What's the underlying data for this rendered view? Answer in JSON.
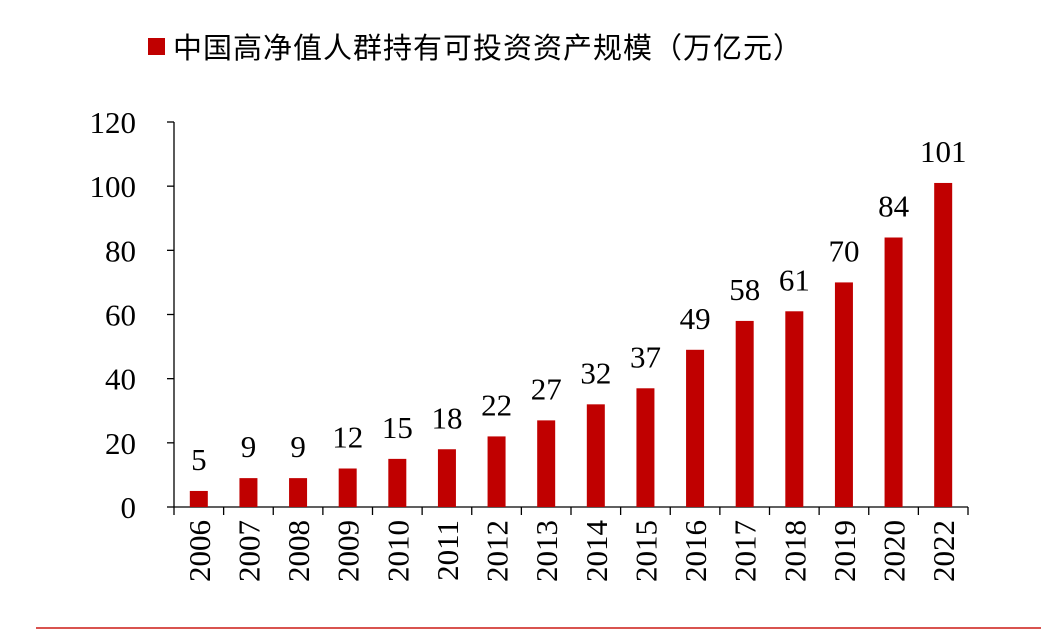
{
  "chart_data": {
    "type": "bar",
    "series": [
      {
        "name": "中国高净值人群持有可投资资产规模（万亿元）",
        "values": [
          5,
          9,
          9,
          12,
          15,
          18,
          22,
          27,
          32,
          37,
          49,
          58,
          61,
          70,
          84,
          101
        ]
      }
    ],
    "categories": [
      "2006",
      "2007",
      "2008",
      "2009",
      "2010",
      "2011",
      "2012",
      "2013",
      "2014",
      "2015",
      "2016",
      "2017",
      "2018",
      "2019",
      "2020",
      "2022"
    ],
    "data_labels": [
      "5",
      "9",
      "9",
      "12",
      "15",
      "18",
      "22",
      "27",
      "32",
      "37",
      "49",
      "58",
      "61",
      "70",
      "84",
      "101"
    ],
    "ylim": [
      0,
      120
    ],
    "yticks": [
      "0",
      "20",
      "40",
      "60",
      "80",
      "100",
      "120"
    ],
    "xlabel": "",
    "ylabel": "",
    "grid": false,
    "legend_position": "top",
    "x_tick_orientation": "vertical",
    "bar_color": "#c00000",
    "footer_rule_color": "#d9534f"
  }
}
